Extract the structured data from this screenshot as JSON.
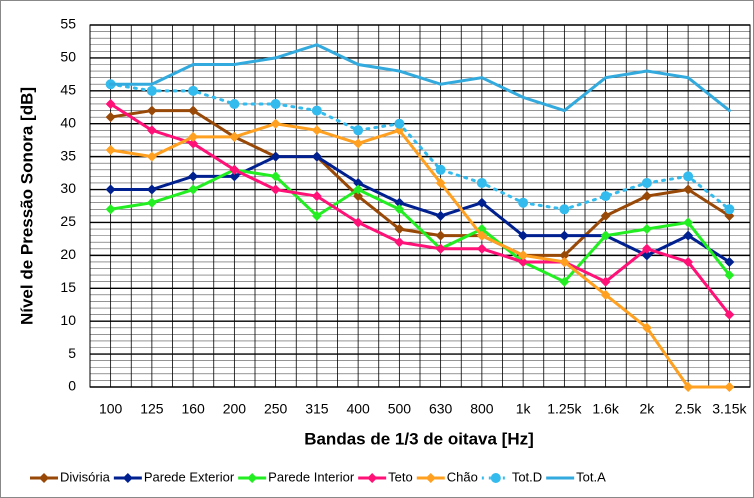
{
  "chart_data": {
    "type": "line",
    "y_label": "Nível de Pressão Sonora [dB]",
    "x_label": "Bandas de 1/3 de oitava [Hz]",
    "categories": [
      "100",
      "125",
      "160",
      "200",
      "250",
      "315",
      "400",
      "500",
      "630",
      "800",
      "1k",
      "1.25k",
      "1.6k",
      "2k",
      "2.5k",
      "3.15k"
    ],
    "ylim": [
      0,
      55
    ],
    "yticks": [
      0,
      5,
      10,
      15,
      20,
      25,
      30,
      35,
      40,
      45,
      50,
      55
    ],
    "grid": true,
    "y_minor_step": 1,
    "legend": "bottom",
    "series": [
      {
        "name": "Divisória",
        "color": "#984807",
        "marker": "diamond",
        "dashed": false,
        "values": [
          41,
          42,
          42,
          38,
          35,
          35,
          29,
          24,
          23,
          23,
          20,
          20,
          26,
          29,
          30,
          26
        ]
      },
      {
        "name": "Parede Exterior",
        "color": "#002090",
        "marker": "diamond",
        "dashed": false,
        "values": [
          30,
          30,
          32,
          32,
          35,
          35,
          31,
          28,
          26,
          28,
          23,
          23,
          23,
          20,
          23,
          19
        ]
      },
      {
        "name": "Parede Interior",
        "color": "#22ee22",
        "marker": "diamond",
        "dashed": false,
        "values": [
          27,
          28,
          30,
          33,
          32,
          26,
          30,
          27,
          21,
          24,
          19,
          16,
          23,
          24,
          25,
          17
        ]
      },
      {
        "name": "Teto",
        "color": "#ff1177",
        "marker": "diamond",
        "dashed": false,
        "values": [
          43,
          39,
          37,
          33,
          30,
          29,
          25,
          22,
          21,
          21,
          19,
          19,
          16,
          21,
          19,
          11
        ]
      },
      {
        "name": "Chão",
        "color": "#ffa020",
        "marker": "diamond",
        "dashed": false,
        "values": [
          36,
          35,
          38,
          38,
          40,
          39,
          37,
          39,
          31,
          23,
          20,
          19,
          14,
          9,
          0,
          0
        ]
      },
      {
        "name": "Tot.D",
        "color": "#33bbee",
        "marker": "circle",
        "dashed": true,
        "values": [
          46,
          45,
          45,
          43,
          43,
          42,
          39,
          40,
          33,
          31,
          28,
          27,
          29,
          31,
          32,
          27
        ]
      },
      {
        "name": "Tot.A",
        "color": "#33aadd",
        "marker": "none",
        "dashed": false,
        "values": [
          46,
          46,
          49,
          49,
          50,
          52,
          49,
          48,
          46,
          47,
          44,
          42,
          47,
          48,
          47,
          42
        ]
      }
    ]
  }
}
